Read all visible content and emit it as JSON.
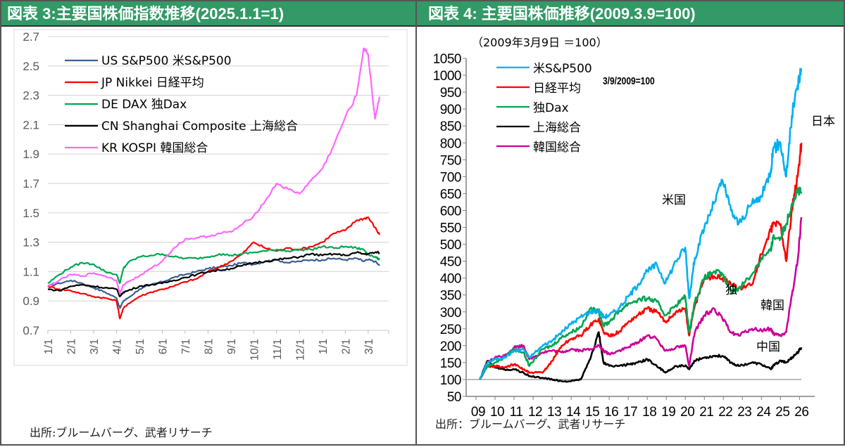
{
  "left_panel": {
    "title": "図表 3:主要国株価指数推移(2025.1.1=1)",
    "source": "出所:ブルームバーグ、武者リサーチ"
  },
  "right_panel": {
    "title": "図表 4: 主要国株価推移(2009.3.9=100)",
    "subtitle": "（2009年3月9日 ＝100）",
    "annotation": "3/9/2009=100",
    "source": "出所：ブルームバーグ、武者リサーチ",
    "inline_labels": [
      "米国",
      "日本",
      "独",
      "韓国",
      "中国"
    ]
  },
  "chart_data": [
    {
      "type": "line",
      "title": "図表 3:主要国株価指数推移(2025.1.1=1)",
      "xlabel": "",
      "ylabel": "",
      "ylim": [
        0.7,
        2.7
      ],
      "yticks": [
        0.7,
        0.9,
        1.1,
        1.3,
        1.5,
        1.7,
        1.9,
        2.1,
        2.3,
        2.5,
        2.7
      ],
      "grid": true,
      "legend_position": "top-left",
      "x_tick_labels": [
        "1/1",
        "2/1",
        "3/1",
        "4/1",
        "5/1",
        "6/1",
        "7/1",
        "8/1",
        "9/1",
        "10/1",
        "11/1",
        "12/1",
        "1/1",
        "2/1",
        "3/1"
      ],
      "x_unit": "months since 2025-01-01",
      "x": [
        0,
        0.5,
        1,
        1.5,
        2,
        2.5,
        3,
        3.15,
        3.3,
        3.5,
        4,
        4.5,
        5,
        5.5,
        6,
        6.5,
        7,
        7.5,
        8,
        8.5,
        9,
        9.5,
        10,
        10.5,
        11,
        11.5,
        12,
        12.5,
        13,
        13.5,
        13.8,
        14,
        14.3,
        14.5
      ],
      "series": [
        {
          "name": "US S&P500 米S&P500",
          "color": "#3A5F8F",
          "values": [
            1.0,
            1.02,
            1.04,
            1.02,
            0.99,
            0.96,
            0.92,
            0.85,
            0.9,
            0.92,
            0.98,
            1.01,
            1.03,
            1.06,
            1.08,
            1.1,
            1.12,
            1.13,
            1.14,
            1.16,
            1.15,
            1.17,
            1.18,
            1.16,
            1.17,
            1.18,
            1.18,
            1.19,
            1.18,
            1.19,
            1.17,
            1.18,
            1.17,
            1.14
          ]
        },
        {
          "name": "JP Nikkei 日経平均",
          "color": "#FF0000",
          "values": [
            1.0,
            0.98,
            0.97,
            0.95,
            0.93,
            0.92,
            0.9,
            0.78,
            0.85,
            0.88,
            0.93,
            0.96,
            0.98,
            1.0,
            1.03,
            1.05,
            1.1,
            1.13,
            1.17,
            1.22,
            1.3,
            1.26,
            1.24,
            1.26,
            1.25,
            1.27,
            1.3,
            1.36,
            1.38,
            1.45,
            1.46,
            1.47,
            1.4,
            1.35
          ]
        },
        {
          "name": "DE DAX 独Dax",
          "color": "#00A651",
          "values": [
            1.02,
            1.08,
            1.13,
            1.16,
            1.15,
            1.1,
            1.08,
            1.02,
            1.12,
            1.16,
            1.2,
            1.21,
            1.22,
            1.2,
            1.19,
            1.19,
            1.2,
            1.22,
            1.21,
            1.22,
            1.23,
            1.24,
            1.25,
            1.24,
            1.25,
            1.25,
            1.27,
            1.26,
            1.27,
            1.26,
            1.25,
            1.22,
            1.2,
            1.18
          ]
        },
        {
          "name": "CN Shanghai Composite 上海総合",
          "color": "#000000",
          "values": [
            0.98,
            0.97,
            1.0,
            1.01,
            1.0,
            0.99,
            0.98,
            0.93,
            0.96,
            0.97,
            1.0,
            1.01,
            1.02,
            1.04,
            1.06,
            1.08,
            1.1,
            1.11,
            1.12,
            1.14,
            1.16,
            1.17,
            1.18,
            1.19,
            1.2,
            1.22,
            1.21,
            1.22,
            1.21,
            1.23,
            1.22,
            1.22,
            1.23,
            1.23
          ]
        },
        {
          "name": "KR KOSPI 韓国総合",
          "color": "#FF66FF",
          "values": [
            1.0,
            1.04,
            1.08,
            1.07,
            1.09,
            1.07,
            1.04,
            0.95,
            1.01,
            1.03,
            1.07,
            1.12,
            1.17,
            1.26,
            1.32,
            1.33,
            1.34,
            1.36,
            1.37,
            1.42,
            1.48,
            1.58,
            1.7,
            1.66,
            1.63,
            1.72,
            1.8,
            1.96,
            2.15,
            2.3,
            2.62,
            2.58,
            2.14,
            2.29
          ]
        }
      ]
    },
    {
      "type": "line",
      "title": "図表 4: 主要国株価推移(2009.3.9=100)",
      "subtitle": "（2009年3月9日 ＝100）",
      "xlabel": "",
      "ylabel": "",
      "ylim": [
        50,
        1050
      ],
      "yticks": [
        50,
        100,
        150,
        200,
        250,
        300,
        350,
        400,
        450,
        500,
        550,
        600,
        650,
        700,
        750,
        800,
        850,
        900,
        950,
        1000,
        1050
      ],
      "grid": false,
      "reference_line": 100,
      "legend_position": "top-left",
      "x_tick_labels": [
        "09",
        "10",
        "11",
        "12",
        "13",
        "14",
        "15",
        "16",
        "17",
        "18",
        "19",
        "20",
        "21",
        "22",
        "23",
        "24",
        "25",
        "26"
      ],
      "x_unit": "year",
      "x": [
        2009.2,
        2009.6,
        2010,
        2010.5,
        2011,
        2011.5,
        2011.8,
        2012.5,
        2013,
        2013.5,
        2014,
        2014.5,
        2015,
        2015.45,
        2015.7,
        2016,
        2016.5,
        2017,
        2017.5,
        2018,
        2018.5,
        2018.95,
        2019.5,
        2020,
        2020.2,
        2020.5,
        2021,
        2021.5,
        2021.95,
        2022.4,
        2022.8,
        2023.5,
        2024,
        2024.5,
        2024.6,
        2025.0,
        2025.3,
        2025.6,
        2025.9,
        2026.1
      ],
      "series": [
        {
          "name": "米S&P500",
          "color": "#00B0F0",
          "values": [
            100,
            150,
            160,
            165,
            185,
            190,
            165,
            200,
            215,
            240,
            265,
            285,
            300,
            305,
            285,
            290,
            310,
            345,
            380,
            420,
            440,
            385,
            450,
            490,
            340,
            460,
            550,
            620,
            690,
            600,
            560,
            620,
            640,
            720,
            780,
            800,
            700,
            880,
            970,
            1020
          ]
        },
        {
          "name": "日経平均",
          "color": "#FF0000",
          "values": [
            100,
            140,
            140,
            135,
            145,
            130,
            120,
            120,
            155,
            200,
            220,
            230,
            260,
            280,
            240,
            230,
            240,
            270,
            290,
            310,
            300,
            270,
            300,
            310,
            230,
            320,
            400,
            405,
            400,
            380,
            370,
            380,
            470,
            540,
            560,
            560,
            450,
            600,
            700,
            800
          ]
        },
        {
          "name": "独Dax",
          "color": "#00A651",
          "values": [
            100,
            140,
            150,
            165,
            190,
            180,
            140,
            190,
            200,
            225,
            240,
            255,
            310,
            300,
            260,
            270,
            300,
            325,
            335,
            340,
            330,
            290,
            320,
            345,
            240,
            330,
            400,
            420,
            410,
            360,
            370,
            410,
            460,
            480,
            520,
            520,
            560,
            620,
            660,
            650
          ]
        },
        {
          "name": "上海総合",
          "color": "#000000",
          "values": [
            100,
            155,
            135,
            130,
            130,
            120,
            110,
            105,
            100,
            95,
            95,
            100,
            160,
            240,
            150,
            140,
            140,
            145,
            150,
            160,
            140,
            120,
            140,
            140,
            130,
            155,
            165,
            170,
            170,
            150,
            140,
            150,
            145,
            130,
            140,
            155,
            150,
            165,
            180,
            195
          ]
        },
        {
          "name": "韓国総合",
          "color": "#CC0099",
          "values": [
            100,
            150,
            165,
            170,
            195,
            200,
            160,
            180,
            185,
            180,
            190,
            185,
            190,
            200,
            185,
            175,
            185,
            195,
            210,
            230,
            220,
            185,
            195,
            200,
            140,
            240,
            290,
            310,
            280,
            240,
            230,
            250,
            245,
            250,
            235,
            230,
            240,
            350,
            450,
            580
          ]
        }
      ],
      "inline_labels": [
        "米国",
        "日本",
        "独",
        "韓国",
        "中国"
      ]
    }
  ]
}
